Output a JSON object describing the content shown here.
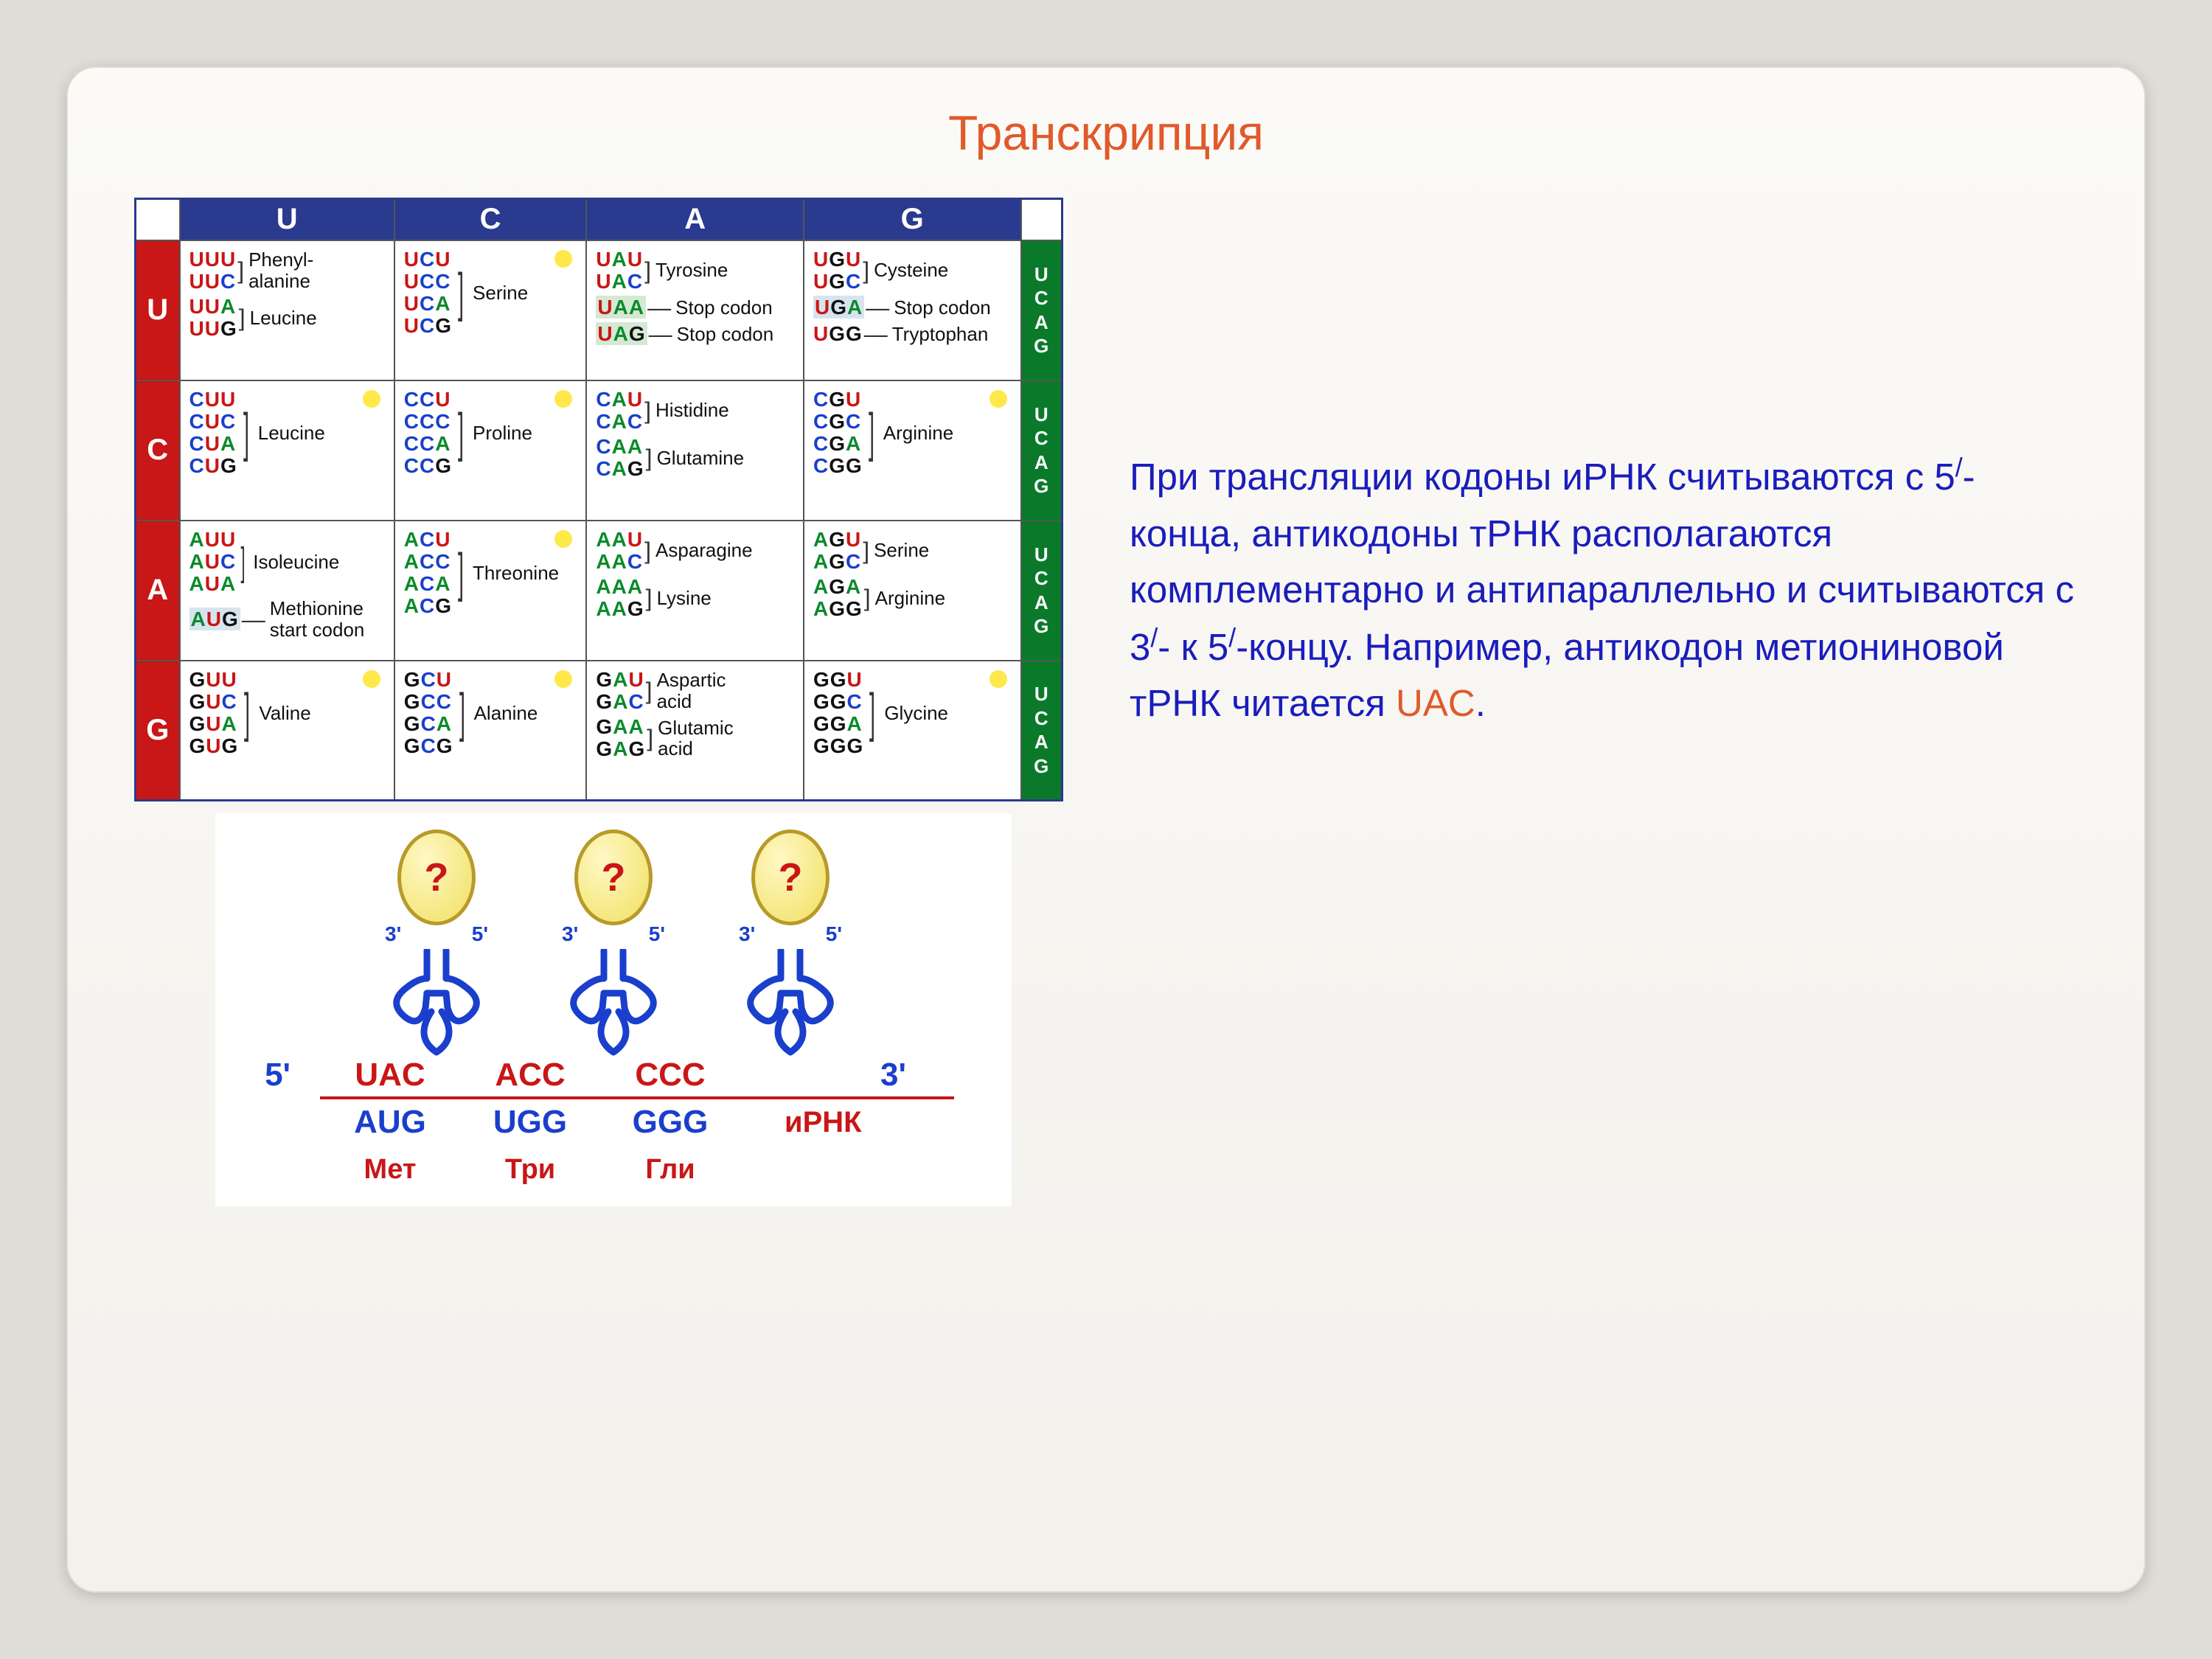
{
  "title": "Транскрипция",
  "desc_html": "При трансляции кодоны иРНК считываются с 5<sup>/</sup>-конца, антикодоны тРНК располагаются комплементарно и антипараллельно  и считываются с 3<sup>/</sup>- к 5<sup>/</sup>-концу. Например, антикодон метиониновой тРНК читается <span class=\"accent\">UAC</span>.",
  "letter_colors": {
    "U": "#c91616",
    "C": "#1a3fcc",
    "A": "#0a8a2a",
    "G": "#111111"
  },
  "table": {
    "background": "#ffffff",
    "header_bg": "#2a3a8f",
    "row_label_bg": "#c91616",
    "col_label_bg": "#0a7a2a",
    "dot_color": "#ffe84a",
    "cols": [
      "U",
      "C",
      "A",
      "G"
    ],
    "rows": [
      "U",
      "C",
      "A",
      "G"
    ],
    "third_letters": [
      "U",
      "C",
      "A",
      "G"
    ],
    "cells": [
      [
        {
          "groups": [
            {
              "codons": [
                "UUU",
                "UUC"
              ],
              "aa": "Phenyl-\nalanine"
            },
            {
              "codons": [
                "UUA",
                "UUG"
              ],
              "aa": "Leucine"
            }
          ]
        },
        {
          "dot": true,
          "groups": [
            {
              "codons": [
                "UCU",
                "UCC",
                "UCA",
                "UCG"
              ],
              "aa": "Serine"
            }
          ]
        },
        {
          "groups": [
            {
              "codons": [
                "UAU",
                "UAC"
              ],
              "aa": "Tyrosine"
            },
            {
              "codons": [
                "UAA"
              ],
              "aa": "Stop codon",
              "hl": "green"
            },
            {
              "codons": [
                "UAG"
              ],
              "aa": "Stop codon",
              "hl": "green"
            }
          ]
        },
        {
          "groups": [
            {
              "codons": [
                "UGU",
                "UGC"
              ],
              "aa": "Cysteine"
            },
            {
              "codons": [
                "UGA"
              ],
              "aa": "Stop codon",
              "hl": "blue"
            },
            {
              "codons": [
                "UGG"
              ],
              "aa": "Tryptophan"
            }
          ]
        }
      ],
      [
        {
          "dot": true,
          "groups": [
            {
              "codons": [
                "CUU",
                "CUC",
                "CUA",
                "CUG"
              ],
              "aa": "Leucine"
            }
          ]
        },
        {
          "dot": true,
          "groups": [
            {
              "codons": [
                "CCU",
                "CCC",
                "CCA",
                "CCG"
              ],
              "aa": "Proline"
            }
          ]
        },
        {
          "groups": [
            {
              "codons": [
                "CAU",
                "CAC"
              ],
              "aa": "Histidine"
            },
            {
              "codons": [
                "CAA",
                "CAG"
              ],
              "aa": "Glutamine"
            }
          ]
        },
        {
          "dot": true,
          "groups": [
            {
              "codons": [
                "CGU",
                "CGC",
                "CGA",
                "CGG"
              ],
              "aa": "Arginine"
            }
          ]
        }
      ],
      [
        {
          "groups": [
            {
              "codons": [
                "AUU",
                "AUC",
                "AUA"
              ],
              "aa": "Isoleucine"
            },
            {
              "codons": [
                "AUG"
              ],
              "aa": "Methionine\nstart codon",
              "hl": "blue"
            }
          ]
        },
        {
          "dot": true,
          "groups": [
            {
              "codons": [
                "ACU",
                "ACC",
                "ACA",
                "ACG"
              ],
              "aa": "Threonine"
            }
          ]
        },
        {
          "groups": [
            {
              "codons": [
                "AAU",
                "AAC"
              ],
              "aa": "Asparagine"
            },
            {
              "codons": [
                "AAA",
                "AAG"
              ],
              "aa": "Lysine"
            }
          ]
        },
        {
          "groups": [
            {
              "codons": [
                "AGU",
                "AGC"
              ],
              "aa": "Serine"
            },
            {
              "codons": [
                "AGA",
                "AGG"
              ],
              "aa": "Arginine"
            }
          ]
        }
      ],
      [
        {
          "dot": true,
          "groups": [
            {
              "codons": [
                "GUU",
                "GUC",
                "GUA",
                "GUG"
              ],
              "aa": "Valine"
            }
          ]
        },
        {
          "dot": true,
          "groups": [
            {
              "codons": [
                "GCU",
                "GCC",
                "GCA",
                "GCG"
              ],
              "aa": "Alanine"
            }
          ]
        },
        {
          "groups": [
            {
              "codons": [
                "GAU",
                "GAC"
              ],
              "aa": "Aspartic\nacid"
            },
            {
              "codons": [
                "GAA",
                "GAG"
              ],
              "aa": "Glutamic\nacid"
            }
          ]
        },
        {
          "dot": true,
          "groups": [
            {
              "codons": [
                "GGU",
                "GGC",
                "GGA",
                "GGG"
              ],
              "aa": "Glycine"
            }
          ]
        }
      ]
    ]
  },
  "trna": {
    "count": 3,
    "ball_text": "?",
    "ball_border": "#b89a2a",
    "ball_fill_inner": "#fff8c5",
    "ball_fill_outer": "#f0e060",
    "body_color": "#1a3fcc",
    "end3": "3'",
    "end5": "5'",
    "anticodons": [
      "UAC",
      "ACC",
      "CCC"
    ],
    "mrna_codons": [
      "AUG",
      "UGG",
      "GGG"
    ],
    "amino_acids": [
      "Мет",
      "Три",
      "Гли"
    ],
    "label_5prime": "5'",
    "label_3prime": "3'",
    "mrna_label": "иРНК",
    "line_color": "#c91616",
    "text_red": "#c91616",
    "text_blue": "#1a3fcc"
  }
}
